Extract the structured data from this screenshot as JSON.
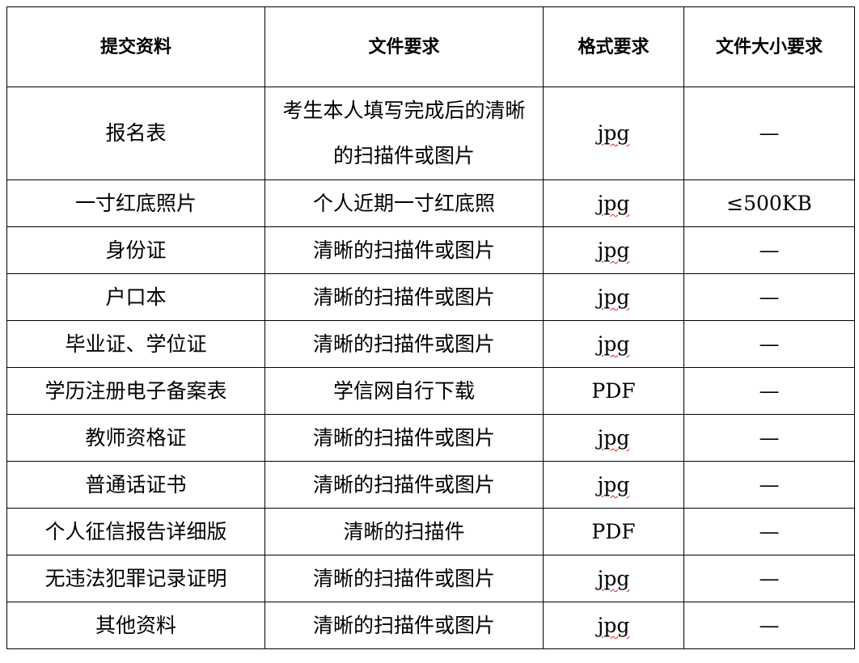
{
  "table": {
    "headers": [
      "提交资料",
      "文件要求",
      "格式要求",
      "文件大小要求"
    ],
    "rows": [
      {
        "item": "报名表",
        "requirement": "考生本人填写完成后的清晰的扫描件或图片",
        "format": "jpg",
        "size": "—"
      },
      {
        "item": "一寸红底照片",
        "requirement": "个人近期一寸红底照",
        "format": "jpg",
        "size": "≤500KB"
      },
      {
        "item": "身份证",
        "requirement": "清晰的扫描件或图片",
        "format": "jpg",
        "size": "—"
      },
      {
        "item": "户口本",
        "requirement": "清晰的扫描件或图片",
        "format": "jpg",
        "size": "—"
      },
      {
        "item": "毕业证、学位证",
        "requirement": "清晰的扫描件或图片",
        "format": "jpg",
        "size": "—"
      },
      {
        "item": "学历注册电子备案表",
        "requirement": "学信网自行下载",
        "format": "PDF",
        "size": "—"
      },
      {
        "item": "教师资格证",
        "requirement": "清晰的扫描件或图片",
        "format": "jpg",
        "size": "—"
      },
      {
        "item": "普通话证书",
        "requirement": "清晰的扫描件或图片",
        "format": "jpg",
        "size": "—"
      },
      {
        "item": "个人征信报告详细版",
        "requirement": "清晰的扫描件",
        "format": "PDF",
        "size": "—"
      },
      {
        "item": "无违法犯罪记录证明",
        "requirement": "清晰的扫描件或图片",
        "format": "jpg",
        "size": "—"
      },
      {
        "item": "其他资料",
        "requirement": "清晰的扫描件或图片",
        "format": "jpg",
        "size": "—"
      }
    ]
  }
}
